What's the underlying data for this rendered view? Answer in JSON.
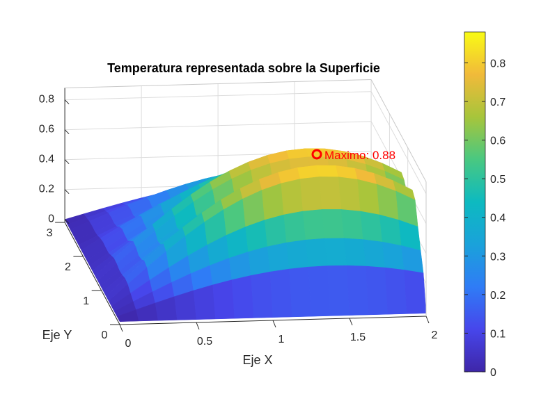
{
  "chart_data": {
    "type": "surface",
    "title": "Temperatura representada sobre la Superficie",
    "xlabel": "Eje X",
    "ylabel": "Eje Y",
    "zlabel": "",
    "xlim": [
      0,
      2
    ],
    "ylim": [
      0,
      3
    ],
    "zlim": [
      0,
      0.88
    ],
    "x_ticks": [
      "0",
      "0.5",
      "1",
      "1.5",
      "2"
    ],
    "y_ticks": [
      "0",
      "1",
      "2",
      "3"
    ],
    "z_ticks": [
      "0",
      "0.2",
      "0.4",
      "0.6",
      "0.8"
    ],
    "grid": true,
    "colormap": "parula",
    "colorbar": {
      "position": "right",
      "limits": [
        0,
        0.88
      ],
      "ticks": [
        "0",
        "0.1",
        "0.2",
        "0.3",
        "0.4",
        "0.5",
        "0.6",
        "0.7",
        "0.8"
      ]
    },
    "max_point": {
      "z": 0.88,
      "label": "Maximo: 0.88",
      "color": "#ff0000"
    }
  }
}
